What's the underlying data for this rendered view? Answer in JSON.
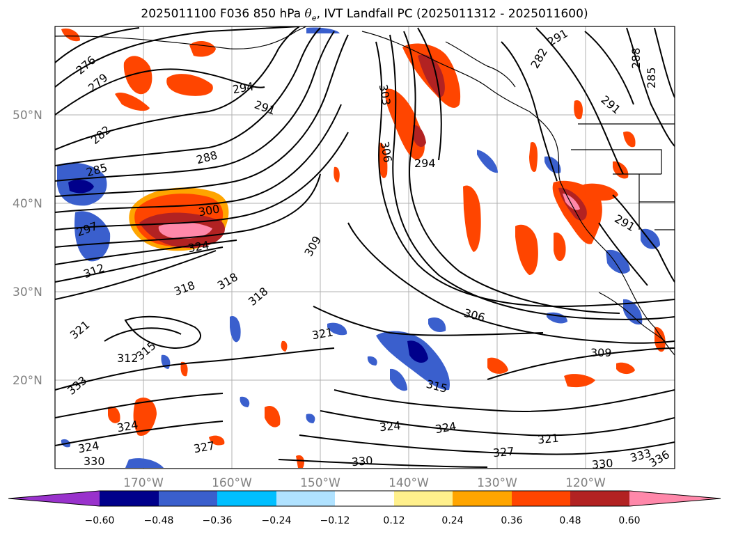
{
  "title": {
    "prefix": "2025011100 F036 850 hPa ",
    "theta": "θ",
    "sub": "e",
    "suffix": ", IVT Landfall PC (2025011312 - 2025011600)"
  },
  "lat_labels": [
    "50°N",
    "40°N",
    "30°N",
    "20°N"
  ],
  "lon_labels": [
    "170°W",
    "160°W",
    "150°W",
    "140°W",
    "130°W",
    "120°W"
  ],
  "colorbar": {
    "colors": [
      "#9932cc",
      "#00008b",
      "#3a5fcd",
      "#00bfff",
      "#b0e2ff",
      "#ffffff",
      "#fff08c",
      "#ffa500",
      "#ff4500",
      "#b22222",
      "#ff88aa"
    ],
    "ticks": [
      "−0.60",
      "−0.48",
      "−0.36",
      "−0.24",
      "−0.12",
      "0.12",
      "0.24",
      "0.36",
      "0.48",
      "0.60"
    ]
  },
  "contour_labels": [
    {
      "text": "276"
    },
    {
      "text": "279"
    },
    {
      "text": "282"
    },
    {
      "text": "285"
    },
    {
      "text": "297"
    },
    {
      "text": "294"
    },
    {
      "text": "291"
    },
    {
      "text": "288"
    },
    {
      "text": "300"
    },
    {
      "text": "324"
    },
    {
      "text": "312"
    },
    {
      "text": "318"
    },
    {
      "text": "318"
    },
    {
      "text": "318"
    },
    {
      "text": "309"
    },
    {
      "text": "303"
    },
    {
      "text": "306"
    },
    {
      "text": "294"
    },
    {
      "text": "321"
    },
    {
      "text": "306"
    },
    {
      "text": "309"
    },
    {
      "text": "315"
    },
    {
      "text": "324"
    },
    {
      "text": "324"
    },
    {
      "text": "327"
    },
    {
      "text": "321"
    },
    {
      "text": "330"
    },
    {
      "text": "333"
    },
    {
      "text": "336"
    },
    {
      "text": "330"
    },
    {
      "text": "327"
    },
    {
      "text": "324"
    },
    {
      "text": "330"
    },
    {
      "text": "324"
    },
    {
      "text": "321"
    },
    {
      "text": "333"
    },
    {
      "text": "315"
    },
    {
      "text": "312"
    },
    {
      "text": "288"
    },
    {
      "text": "291"
    },
    {
      "text": "285"
    },
    {
      "text": "291"
    },
    {
      "text": "291"
    },
    {
      "text": "282"
    }
  ]
}
